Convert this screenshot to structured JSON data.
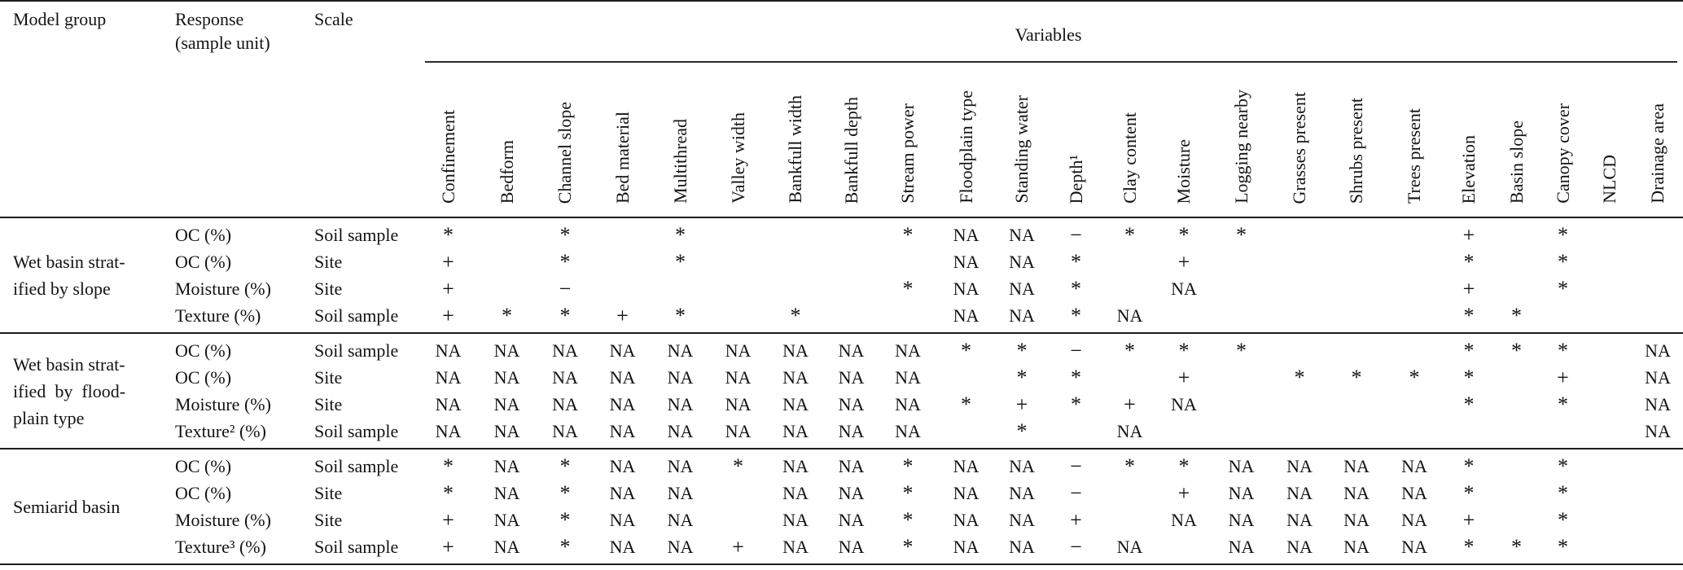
{
  "page": {
    "background_color": "#ffffff",
    "text_color": "#131313",
    "rule_color": "#1c1c1c"
  },
  "table": {
    "headers": {
      "model_group": "Model group",
      "response": "Response\n(sample unit)",
      "scale": "Scale",
      "variables_label": "Variables"
    },
    "variable_columns": [
      "Confinement",
      "Bedform",
      "Channel slope",
      "Bed material",
      "Multithread",
      "Valley width",
      "Bankfull width",
      "Bankfull depth",
      "Stream power",
      "Floodplain type",
      "Standing water",
      "Depth¹",
      "Clay content",
      "Moisture",
      "Logging nearby",
      "Grasses present",
      "Shrubs present",
      "Trees present",
      "Elevation",
      "Basin slope",
      "Canopy cover",
      "NLCD",
      "Drainage area"
    ],
    "cell_symbols_used": [
      "*",
      "+",
      "−",
      "NA",
      ""
    ],
    "groups": [
      {
        "label": "Wet basin strat-\nified by slope",
        "rows": [
          {
            "response": "OC (%)",
            "scale": "Soil sample",
            "values": [
              "*",
              "",
              "*",
              "",
              "*",
              "",
              "",
              "",
              "*",
              "NA",
              "NA",
              "−",
              "*",
              "*",
              "*",
              "",
              "",
              "",
              "+",
              "",
              "*",
              "",
              ""
            ]
          },
          {
            "response": "OC (%)",
            "scale": "Site",
            "values": [
              "+",
              "",
              "*",
              "",
              "*",
              "",
              "",
              "",
              "",
              "NA",
              "NA",
              "*",
              "",
              "+",
              "",
              "",
              "",
              "",
              "*",
              "",
              "*",
              "",
              ""
            ]
          },
          {
            "response": "Moisture (%)",
            "scale": "Site",
            "values": [
              "+",
              "",
              "−",
              "",
              "",
              "",
              "",
              "",
              "*",
              "NA",
              "NA",
              "*",
              "",
              "NA",
              "",
              "",
              "",
              "",
              "+",
              "",
              "*",
              "",
              ""
            ]
          },
          {
            "response": "Texture (%)",
            "scale": "Soil sample",
            "values": [
              "+",
              "*",
              "*",
              "+",
              "*",
              "",
              "*",
              "",
              "",
              "NA",
              "NA",
              "*",
              "NA",
              "",
              "",
              "",
              "",
              "",
              "*",
              "*",
              "",
              "",
              ""
            ]
          }
        ]
      },
      {
        "label": "Wet basin strat-\nified  by  flood-\nplain type",
        "rows": [
          {
            "response": "OC (%)",
            "scale": "Soil sample",
            "values": [
              "NA",
              "NA",
              "NA",
              "NA",
              "NA",
              "NA",
              "NA",
              "NA",
              "NA",
              "*",
              "*",
              "−",
              "*",
              "*",
              "*",
              "",
              "",
              "",
              "*",
              "*",
              "*",
              "",
              "NA"
            ]
          },
          {
            "response": "OC (%)",
            "scale": "Site",
            "values": [
              "NA",
              "NA",
              "NA",
              "NA",
              "NA",
              "NA",
              "NA",
              "NA",
              "NA",
              "",
              "*",
              "*",
              "",
              "+",
              "",
              "*",
              "*",
              "*",
              "*",
              "",
              "+",
              "",
              "NA"
            ]
          },
          {
            "response": "Moisture (%)",
            "scale": "Site",
            "values": [
              "NA",
              "NA",
              "NA",
              "NA",
              "NA",
              "NA",
              "NA",
              "NA",
              "NA",
              "*",
              "+",
              "*",
              "+",
              "NA",
              "",
              "",
              "",
              "",
              "*",
              "",
              "*",
              "",
              "NA"
            ]
          },
          {
            "response": "Texture² (%)",
            "scale": "Soil sample",
            "values": [
              "NA",
              "NA",
              "NA",
              "NA",
              "NA",
              "NA",
              "NA",
              "NA",
              "NA",
              "",
              "*",
              "",
              "NA",
              "",
              "",
              "",
              "",
              "",
              "",
              "",
              "",
              "",
              "NA"
            ]
          }
        ]
      },
      {
        "label": "Semiarid basin",
        "rows": [
          {
            "response": "OC (%)",
            "scale": "Soil sample",
            "values": [
              "*",
              "NA",
              "*",
              "NA",
              "NA",
              "*",
              "NA",
              "NA",
              "*",
              "NA",
              "NA",
              "−",
              "*",
              "*",
              "NA",
              "NA",
              "NA",
              "NA",
              "*",
              "",
              "*",
              "",
              ""
            ]
          },
          {
            "response": "OC (%)",
            "scale": "Site",
            "values": [
              "*",
              "NA",
              "*",
              "NA",
              "NA",
              "",
              "NA",
              "NA",
              "*",
              "NA",
              "NA",
              "−",
              "",
              "+",
              "NA",
              "NA",
              "NA",
              "NA",
              "*",
              "",
              "*",
              "",
              ""
            ]
          },
          {
            "response": "Moisture (%)",
            "scale": "Site",
            "values": [
              "+",
              "NA",
              "*",
              "NA",
              "NA",
              "",
              "NA",
              "NA",
              "*",
              "NA",
              "NA",
              "+",
              "",
              "NA",
              "NA",
              "NA",
              "NA",
              "NA",
              "+",
              "",
              "*",
              "",
              ""
            ]
          },
          {
            "response": "Texture³ (%)",
            "scale": "Soil sample",
            "values": [
              "+",
              "NA",
              "*",
              "NA",
              "NA",
              "+",
              "NA",
              "NA",
              "*",
              "NA",
              "NA",
              "−",
              "NA",
              "",
              "NA",
              "NA",
              "NA",
              "NA",
              "*",
              "*",
              "*",
              "",
              ""
            ]
          }
        ]
      }
    ]
  }
}
